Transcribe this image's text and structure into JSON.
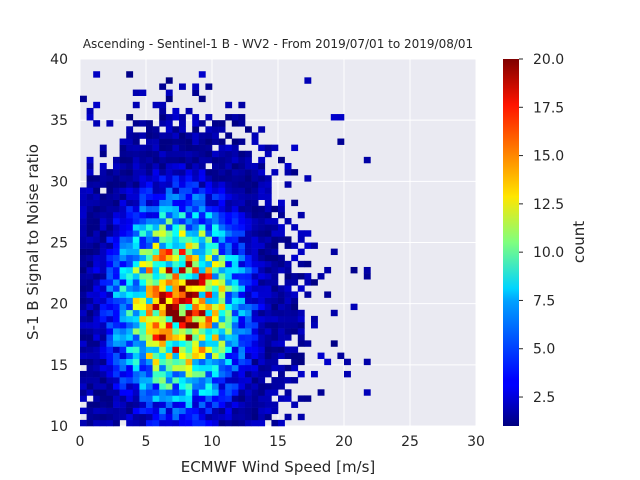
{
  "chart_data": {
    "type": "heatmap",
    "title": "Ascending - Sentinel-1 B - WV2 - From 2019/07/01 to 2019/08/01",
    "xlabel": "ECMWF Wind Speed [m/s]",
    "ylabel": "S-1 B Signal to Noise ratio",
    "xlim": [
      0,
      30
    ],
    "ylim": [
      10,
      40
    ],
    "xticks": [
      "0",
      "5",
      "10",
      "15",
      "20",
      "25",
      "30"
    ],
    "yticks": [
      "10",
      "15",
      "20",
      "25",
      "30",
      "35",
      "40"
    ],
    "grid": true,
    "colormap": "jet",
    "colorbar": {
      "label": "count",
      "min": 1,
      "max": 20,
      "ticks": [
        "2.5",
        "5.0",
        "7.5",
        "10.0",
        "12.5",
        "15.0",
        "17.5",
        "20.0"
      ]
    },
    "bin_size": {
      "x": 0.5,
      "y": 0.5
    },
    "density_model": {
      "peak_count": 18,
      "center_x": 7.5,
      "center_y": 20,
      "spread_x": 3.2,
      "spread_y": 5.5
    },
    "extent": {
      "x": [
        0,
        22.5
      ],
      "y": [
        10,
        39
      ]
    }
  }
}
